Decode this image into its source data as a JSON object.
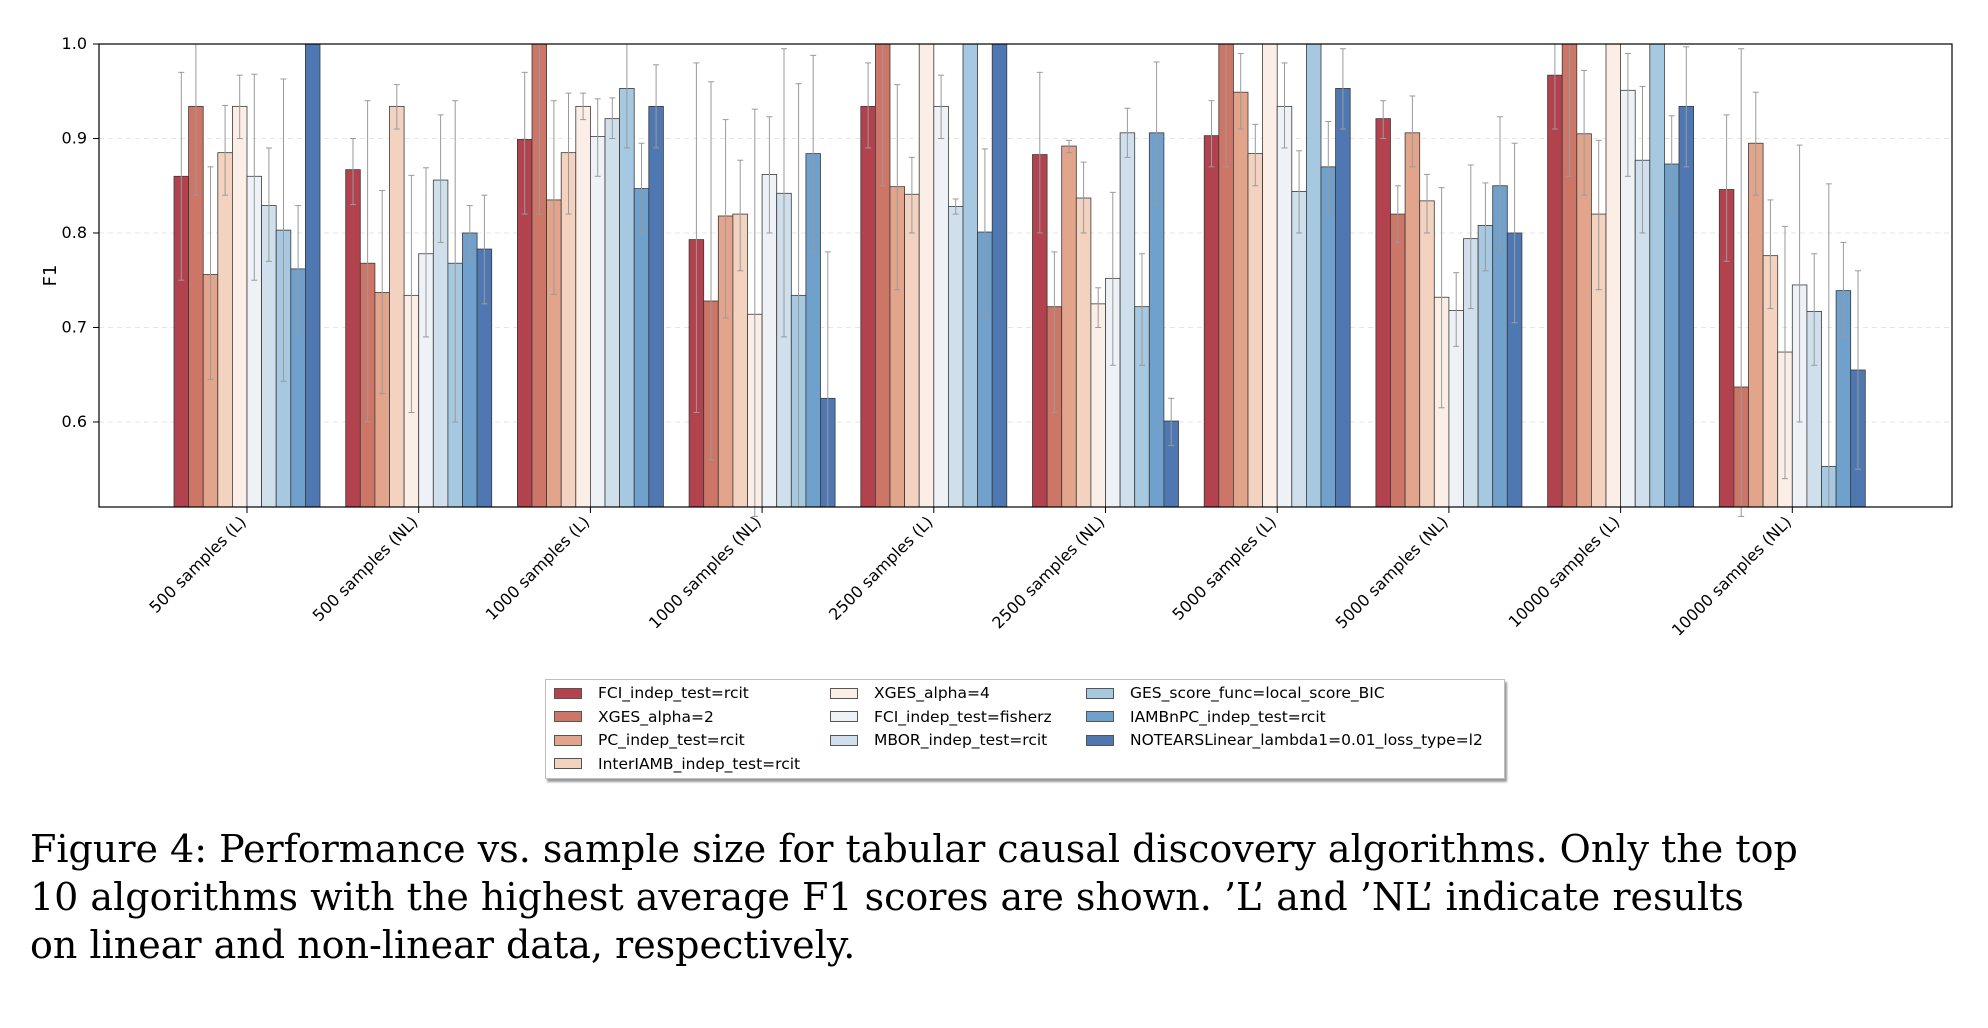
{
  "chart_data": {
    "type": "bar",
    "title": "",
    "xlabel": "",
    "ylabel": "F1",
    "ylim": [
      0.51,
      1.0
    ],
    "yticks": [
      "0.6",
      "0.7",
      "0.8",
      "0.9",
      "1.0"
    ],
    "categories": [
      "500 samples (L)",
      "500 samples (NL)",
      "1000 samples (L)",
      "1000 samples (NL)",
      "2500 samples (L)",
      "2500 samples (NL)",
      "5000 samples (L)",
      "5000 samples (NL)",
      "10000 samples (L)",
      "10000 samples (NL)"
    ],
    "series": [
      {
        "name": "FCI_indep_test=rcit",
        "color": "#b2424e",
        "values": [
          0.86,
          0.867,
          0.899,
          0.793,
          0.934,
          0.883,
          0.903,
          0.921,
          0.967,
          0.846
        ],
        "err_low": [
          0.75,
          0.83,
          0.82,
          0.61,
          0.89,
          0.8,
          0.87,
          0.9,
          0.91,
          0.77
        ],
        "err_high": [
          0.97,
          0.9,
          0.97,
          0.98,
          0.98,
          0.97,
          0.94,
          0.94,
          1.0,
          0.925
        ]
      },
      {
        "name": "XGES_alpha=2",
        "color": "#cd7668",
        "values": [
          0.934,
          0.768,
          1.0,
          0.728,
          1.0,
          0.722,
          1.0,
          0.82,
          1.0,
          0.637
        ],
        "err_low": [
          0.84,
          0.6,
          0.82,
          0.56,
          0.85,
          0.61,
          0.87,
          0.79,
          0.86,
          0.5
        ],
        "err_high": [
          1.0,
          0.94,
          1.0,
          0.96,
          1.0,
          0.78,
          1.0,
          0.85,
          1.0,
          0.995
        ]
      },
      {
        "name": "PC_indep_test=rcit",
        "color": "#e3a48c",
        "values": [
          0.756,
          0.737,
          0.835,
          0.818,
          0.849,
          0.892,
          0.949,
          0.906,
          0.905,
          0.895
        ],
        "err_low": [
          0.645,
          0.63,
          0.735,
          0.71,
          0.74,
          0.885,
          0.91,
          0.87,
          0.84,
          0.84
        ],
        "err_high": [
          0.87,
          0.845,
          0.94,
          0.92,
          0.957,
          0.898,
          0.99,
          0.945,
          0.972,
          0.949
        ]
      },
      {
        "name": "InterIAMB_indep_test=rcit",
        "color": "#f3d2c0",
        "values": [
          0.885,
          0.934,
          0.885,
          0.82,
          0.841,
          0.837,
          0.884,
          0.834,
          0.82,
          0.776
        ],
        "err_low": [
          0.84,
          0.91,
          0.82,
          0.76,
          0.8,
          0.8,
          0.85,
          0.8,
          0.74,
          0.72
        ],
        "err_high": [
          0.935,
          0.957,
          0.948,
          0.877,
          0.88,
          0.875,
          0.915,
          0.862,
          0.898,
          0.835
        ]
      },
      {
        "name": "XGES_alpha=4",
        "color": "#fbeee6",
        "values": [
          0.934,
          0.734,
          0.934,
          0.714,
          1.0,
          0.725,
          1.0,
          0.732,
          1.0,
          0.674
        ],
        "err_low": [
          0.9,
          0.61,
          0.92,
          0.5,
          1.0,
          0.7,
          1.0,
          0.615,
          1.0,
          0.54
        ],
        "err_high": [
          0.967,
          0.861,
          0.948,
          0.931,
          1.0,
          0.742,
          1.0,
          0.848,
          1.0,
          0.807
        ]
      },
      {
        "name": "FCI_indep_test=fisherz",
        "color": "#eef2f7",
        "values": [
          0.86,
          0.778,
          0.902,
          0.862,
          0.934,
          0.752,
          0.934,
          0.718,
          0.951,
          0.745
        ],
        "err_low": [
          0.75,
          0.69,
          0.86,
          0.8,
          0.9,
          0.66,
          0.89,
          0.68,
          0.86,
          0.6
        ],
        "err_high": [
          0.968,
          0.869,
          0.942,
          0.923,
          0.967,
          0.843,
          0.98,
          0.758,
          0.99,
          0.893
        ]
      },
      {
        "name": "MBOR_indep_test=rcit",
        "color": "#cfe0ec",
        "values": [
          0.829,
          0.856,
          0.921,
          0.842,
          0.828,
          0.906,
          0.844,
          0.794,
          0.877,
          0.717
        ],
        "err_low": [
          0.77,
          0.79,
          0.9,
          0.69,
          0.82,
          0.88,
          0.8,
          0.72,
          0.8,
          0.66
        ],
        "err_high": [
          0.89,
          0.925,
          0.943,
          0.995,
          0.836,
          0.932,
          0.887,
          0.872,
          0.955,
          0.778
        ]
      },
      {
        "name": "GES_score_func=local_score_BIC",
        "color": "#a6c8e0",
        "values": [
          0.803,
          0.768,
          0.953,
          0.734,
          1.0,
          0.722,
          1.0,
          0.808,
          1.0,
          0.553
        ],
        "err_low": [
          0.643,
          0.6,
          0.89,
          0.51,
          1.0,
          0.66,
          1.0,
          0.76,
          1.0,
          0.51
        ],
        "err_high": [
          0.963,
          0.94,
          1.0,
          0.958,
          1.0,
          0.778,
          1.0,
          0.853,
          1.0,
          0.852
        ]
      },
      {
        "name": "IAMBnPC_indep_test=rcit",
        "color": "#6fa1cc",
        "values": [
          0.762,
          0.8,
          0.847,
          0.884,
          0.801,
          0.906,
          0.87,
          0.85,
          0.873,
          0.739
        ],
        "err_low": [
          0.695,
          0.77,
          0.8,
          0.78,
          0.71,
          0.83,
          0.82,
          0.78,
          0.82,
          0.69
        ],
        "err_high": [
          0.829,
          0.829,
          0.895,
          0.988,
          0.889,
          0.981,
          0.918,
          0.923,
          0.924,
          0.79
        ]
      },
      {
        "name": "NOTEARSLinear_lambda1=0.01_loss_type=l2",
        "color": "#4f78b3",
        "values": [
          1.0,
          0.783,
          0.934,
          0.625,
          1.0,
          0.601,
          0.953,
          0.8,
          0.934,
          0.655
        ],
        "err_low": [
          1.0,
          0.725,
          0.89,
          0.51,
          1.0,
          0.575,
          0.91,
          0.705,
          0.87,
          0.55
        ],
        "err_high": [
          1.0,
          0.84,
          0.978,
          0.78,
          1.0,
          0.625,
          0.995,
          0.895,
          0.997,
          0.76
        ]
      }
    ]
  },
  "caption": {
    "line1": "Figure 4: Performance vs. sample size for tabular causal discovery algorithms. Only the top",
    "line2": "10 algorithms with the highest average F1 scores are shown. ’L’ and ’NL’ indicate results",
    "line3": "on linear and non-linear data, respectively."
  }
}
